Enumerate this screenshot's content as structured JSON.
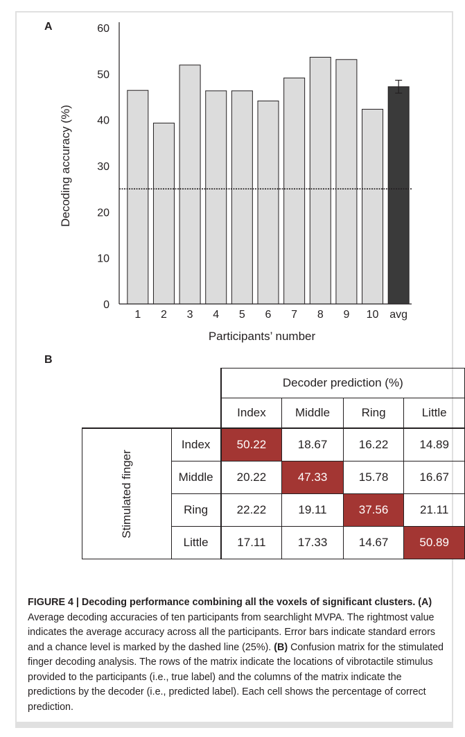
{
  "panel_a_label": "A",
  "panel_b_label": "B",
  "chart_data": {
    "type": "bar",
    "categories": [
      "1",
      "2",
      "3",
      "4",
      "5",
      "6",
      "7",
      "8",
      "9",
      "10",
      "avg"
    ],
    "values": [
      46.4,
      39.3,
      51.9,
      46.3,
      46.3,
      44.1,
      49.1,
      53.6,
      53.1,
      42.3,
      47.2
    ],
    "avg_error": 1.4,
    "chance_level": 25,
    "ylim": [
      0,
      60
    ],
    "yticks": [
      0,
      10,
      20,
      30,
      40,
      50,
      60
    ],
    "ylabel": "Decoding accuracy (%)",
    "xlabel": "Participants’ number",
    "bar_color": "#dcdcdc",
    "avg_bar_color": "#3a3a3a"
  },
  "confusion_matrix": {
    "column_group_label": "Decoder prediction (%)",
    "row_group_label": "Stimulated finger",
    "columns": [
      "Index",
      "Middle",
      "Ring",
      "Little"
    ],
    "rows": [
      {
        "label": "Index",
        "values": [
          "50.22",
          "18.67",
          "16.22",
          "14.89"
        ]
      },
      {
        "label": "Middle",
        "values": [
          "20.22",
          "47.33",
          "15.78",
          "16.67"
        ]
      },
      {
        "label": "Ring",
        "values": [
          "22.22",
          "19.11",
          "37.56",
          "21.11"
        ]
      },
      {
        "label": "Little",
        "values": [
          "17.11",
          "17.33",
          "14.67",
          "50.89"
        ]
      }
    ],
    "highlight_color": "#a33633"
  },
  "caption": {
    "title": "FIGURE 4 | Decoding performance combining all the voxels of significant clusters.",
    "a_marker": "(A)",
    "a_text": " Average decoding accuracies of ten participants from searchlight MVPA. The rightmost value indicates the average accuracy across all the participants. Error bars indicate standard errors and a chance level is marked by the dashed line (25%). ",
    "b_marker": "(B)",
    "b_text": " Confusion matrix for the stimulated finger decoding analysis. The rows of the matrix indicate the locations of vibrotactile stimulus provided to the participants (i.e., true label) and the columns of the matrix indicate the predictions by the decoder (i.e., predicted label). Each cell shows the percentage of correct prediction."
  }
}
